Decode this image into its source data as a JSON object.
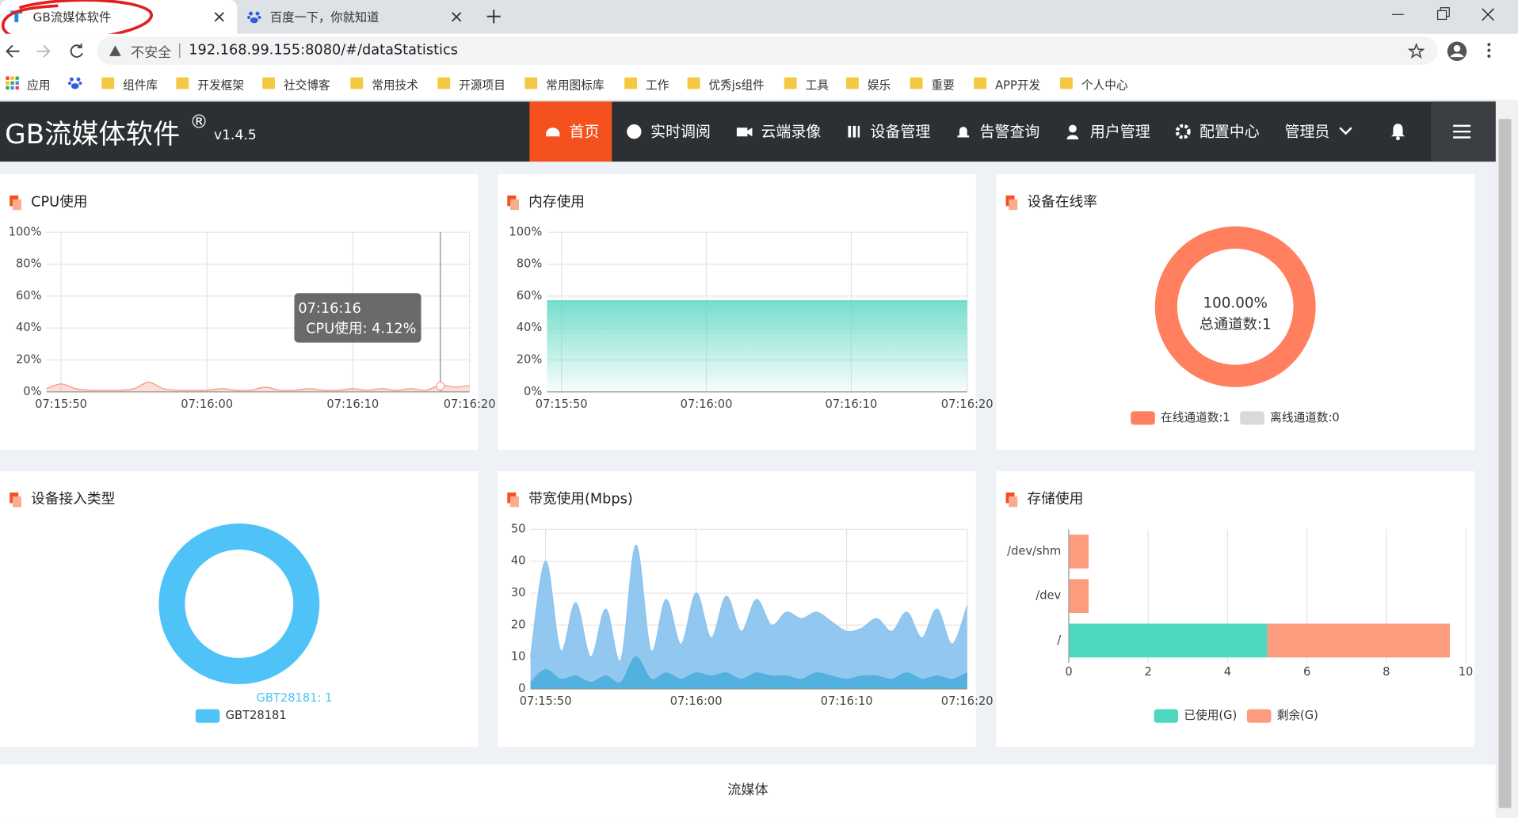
{
  "browser": {
    "tabs": [
      "GB流媒体软件",
      "百度一下，你就知道"
    ],
    "security": "不安全",
    "url": "192.168.99.155:8080/#/dataStatistics",
    "bookmarks": [
      "应用",
      "组件库",
      "开发框架",
      "社交博客",
      "常用技术",
      "开源项目",
      "常用图标库",
      "工作",
      "优秀js组件",
      "工具",
      "娱乐",
      "重要",
      "APP开发",
      "个人中心"
    ]
  },
  "header": {
    "brand": "GB流媒体软件",
    "mark": "®",
    "version": "v1.4.5",
    "nav": [
      "首页",
      "实时调阅",
      "云端录像",
      "设备管理",
      "告警查询",
      "用户管理",
      "配置中心",
      "管理员"
    ]
  },
  "footer": "流媒体",
  "chart_data": [
    {
      "type": "area",
      "title": "CPU使用",
      "categories": [
        null,
        "07:15:50",
        null,
        null,
        null,
        null,
        null,
        null,
        null,
        null,
        null,
        "07:16:00",
        null,
        null,
        null,
        null,
        null,
        null,
        null,
        null,
        null,
        "07:16:10",
        null,
        null,
        null,
        null,
        null,
        null,
        null,
        "07:16:20"
      ],
      "series": [
        {
          "color": "#f7a18e",
          "values": [
            2,
            5,
            2,
            1,
            1,
            1,
            2,
            6,
            2,
            1,
            1,
            1,
            2,
            1,
            1,
            3,
            1,
            1,
            2,
            1,
            1,
            2,
            1,
            2,
            1,
            2,
            1,
            4.12,
            3,
            4
          ]
        }
      ],
      "ylim": [
        0,
        100
      ],
      "yticks": [
        {
          "value": 0,
          "label": "0%"
        },
        {
          "value": 20,
          "label": "20%"
        },
        {
          "value": 40,
          "label": "40%"
        },
        {
          "value": 60,
          "label": "60%"
        },
        {
          "value": 80,
          "label": "80%"
        },
        {
          "value": 100,
          "label": "100%"
        }
      ],
      "grid": true,
      "tooltip": {
        "title": "07:16:16",
        "text": "CPU使用: 4.12%"
      }
    },
    {
      "type": "area",
      "title": "内存使用",
      "categories": [
        null,
        "07:15:50",
        null,
        null,
        null,
        null,
        null,
        null,
        null,
        null,
        null,
        "07:16:00",
        null,
        null,
        null,
        null,
        null,
        null,
        null,
        null,
        null,
        "07:16:10",
        null,
        null,
        null,
        null,
        null,
        null,
        null,
        "07:16:20"
      ],
      "series": [
        {
          "color": "#5dd8c3",
          "values": [
            57,
            57,
            57,
            57,
            57,
            57,
            57,
            57,
            57,
            57,
            57,
            57,
            57,
            57,
            57,
            57,
            57,
            57,
            57,
            57,
            57,
            57,
            57,
            57,
            57,
            57,
            57,
            57,
            57,
            57
          ]
        }
      ],
      "gradient": true,
      "ylim": [
        0,
        100
      ],
      "yticks": [
        {
          "value": 0,
          "label": "0%"
        },
        {
          "value": 20,
          "label": "20%"
        },
        {
          "value": 40,
          "label": "40%"
        },
        {
          "value": 60,
          "label": "60%"
        },
        {
          "value": 80,
          "label": "80%"
        },
        {
          "value": 100,
          "label": "100%"
        }
      ],
      "grid": true
    },
    {
      "type": "donut",
      "title": "设备在线率",
      "categories": [
        "在线通道数:1",
        "离线通道数:0"
      ],
      "values": [
        1,
        0
      ],
      "colors": [
        "#ff7f5f",
        "#d9d9d9"
      ],
      "center_text": [
        "100.00%",
        "总通道数:1"
      ]
    },
    {
      "type": "donut",
      "title": "设备接入类型",
      "categories": [
        "GBT28181"
      ],
      "values": [
        1
      ],
      "value_labels": [
        "GBT28181: 1"
      ],
      "colors": [
        "#4fc3f7"
      ]
    },
    {
      "type": "area",
      "title": "带宽使用(Mbps)",
      "categories": [
        null,
        "07:15:50",
        null,
        null,
        null,
        null,
        null,
        null,
        null,
        null,
        null,
        "07:16:00",
        null,
        null,
        null,
        null,
        null,
        null,
        null,
        null,
        null,
        "07:16:10",
        null,
        null,
        null,
        null,
        null,
        null,
        null,
        "07:16:20"
      ],
      "series": [
        {
          "color": "#8cc4ef",
          "values": [
            10,
            40,
            12,
            27,
            10,
            25,
            9,
            45,
            12,
            28,
            14,
            30,
            16,
            29,
            18,
            28,
            20,
            24,
            22,
            24,
            21,
            18,
            19,
            22,
            18,
            24,
            16,
            25,
            14,
            26
          ]
        },
        {
          "color": "#4fb0dd",
          "values": [
            2,
            6,
            3,
            4,
            2,
            4,
            2,
            10,
            3,
            5,
            3,
            5,
            4,
            5,
            3,
            5,
            4,
            4,
            3,
            5,
            4,
            3,
            4,
            4,
            3,
            5,
            3,
            4,
            3,
            5
          ]
        }
      ],
      "ylim": [
        0,
        50
      ],
      "yticks": [
        0,
        10,
        20,
        30,
        40,
        50
      ],
      "grid": true
    },
    {
      "type": "hbar",
      "title": "存储使用",
      "categories": [
        "/dev/shm",
        "/dev",
        "/"
      ],
      "series": [
        {
          "name": "已使用(G)",
          "color": "#4fd8c0",
          "values": [
            0,
            0,
            5
          ]
        },
        {
          "name": "剩余(G)",
          "color": "#fb9c7f",
          "values": [
            0.5,
            0.5,
            4.6
          ]
        }
      ],
      "xlim": [
        0,
        10
      ],
      "xticks": [
        0,
        2,
        4,
        6,
        8,
        10
      ],
      "grid": true
    }
  ]
}
